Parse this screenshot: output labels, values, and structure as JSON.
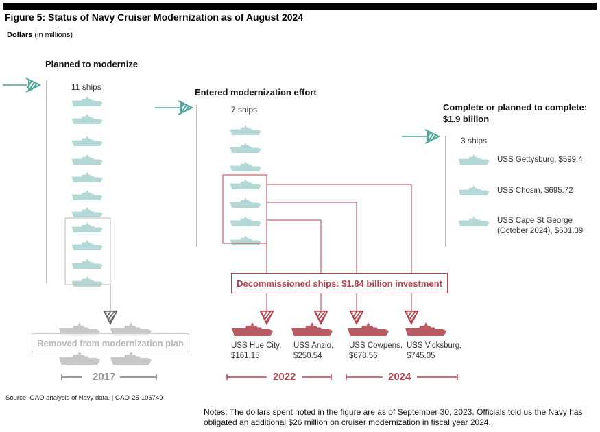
{
  "title": "Figure 5: Status of Navy Cruiser Modernization as of August 2024",
  "units": {
    "bold": "Dollars",
    "rest": "(in millions)"
  },
  "columns": [
    {
      "heading": "Planned to modernize",
      "count": "11 ships"
    },
    {
      "heading": "Entered modernization effort",
      "count": "7 ships"
    },
    {
      "heading_line1": "Complete or planned to complete:",
      "heading_line2": "$1.9 billion",
      "count": "3 ships",
      "ships": [
        {
          "line1": "USS Gettysburg, $599.4",
          "line2": ""
        },
        {
          "line1": "USS Chosin, $695.72",
          "line2": ""
        },
        {
          "line1": "USS Cape St George",
          "line2": "(October 2024), $601.39"
        }
      ]
    }
  ],
  "decommissioned": {
    "label": "Decommissioned ships: $1.84 billion investment",
    "ships": [
      {
        "name": "USS Hue City,",
        "value": "$161.15"
      },
      {
        "name": "USS Anzio,",
        "value": "$250.54"
      },
      {
        "name": "USS Cowpens,",
        "value": "$678.56"
      },
      {
        "name": "USS Vicksburg,",
        "value": "$745.05"
      }
    ],
    "years": [
      "2022",
      "2024"
    ]
  },
  "removed": {
    "label": "Removed from modernization plan",
    "year": "2017"
  },
  "source": "Source: GAO analysis of Navy data.  |  GAO-25-106749",
  "notes": "Notes: The dollars spent noted in the figure are as of September 30, 2023. Officials told us the Navy has obligated an additional $26 million on cruiser modernization in fiscal year 2024.",
  "colors": {
    "teal": "#4fa59c",
    "ship_teal": "#b3d8d6",
    "red": "#b5424c",
    "ship_red": "#b85a62",
    "gray": "#c8c8c8"
  }
}
